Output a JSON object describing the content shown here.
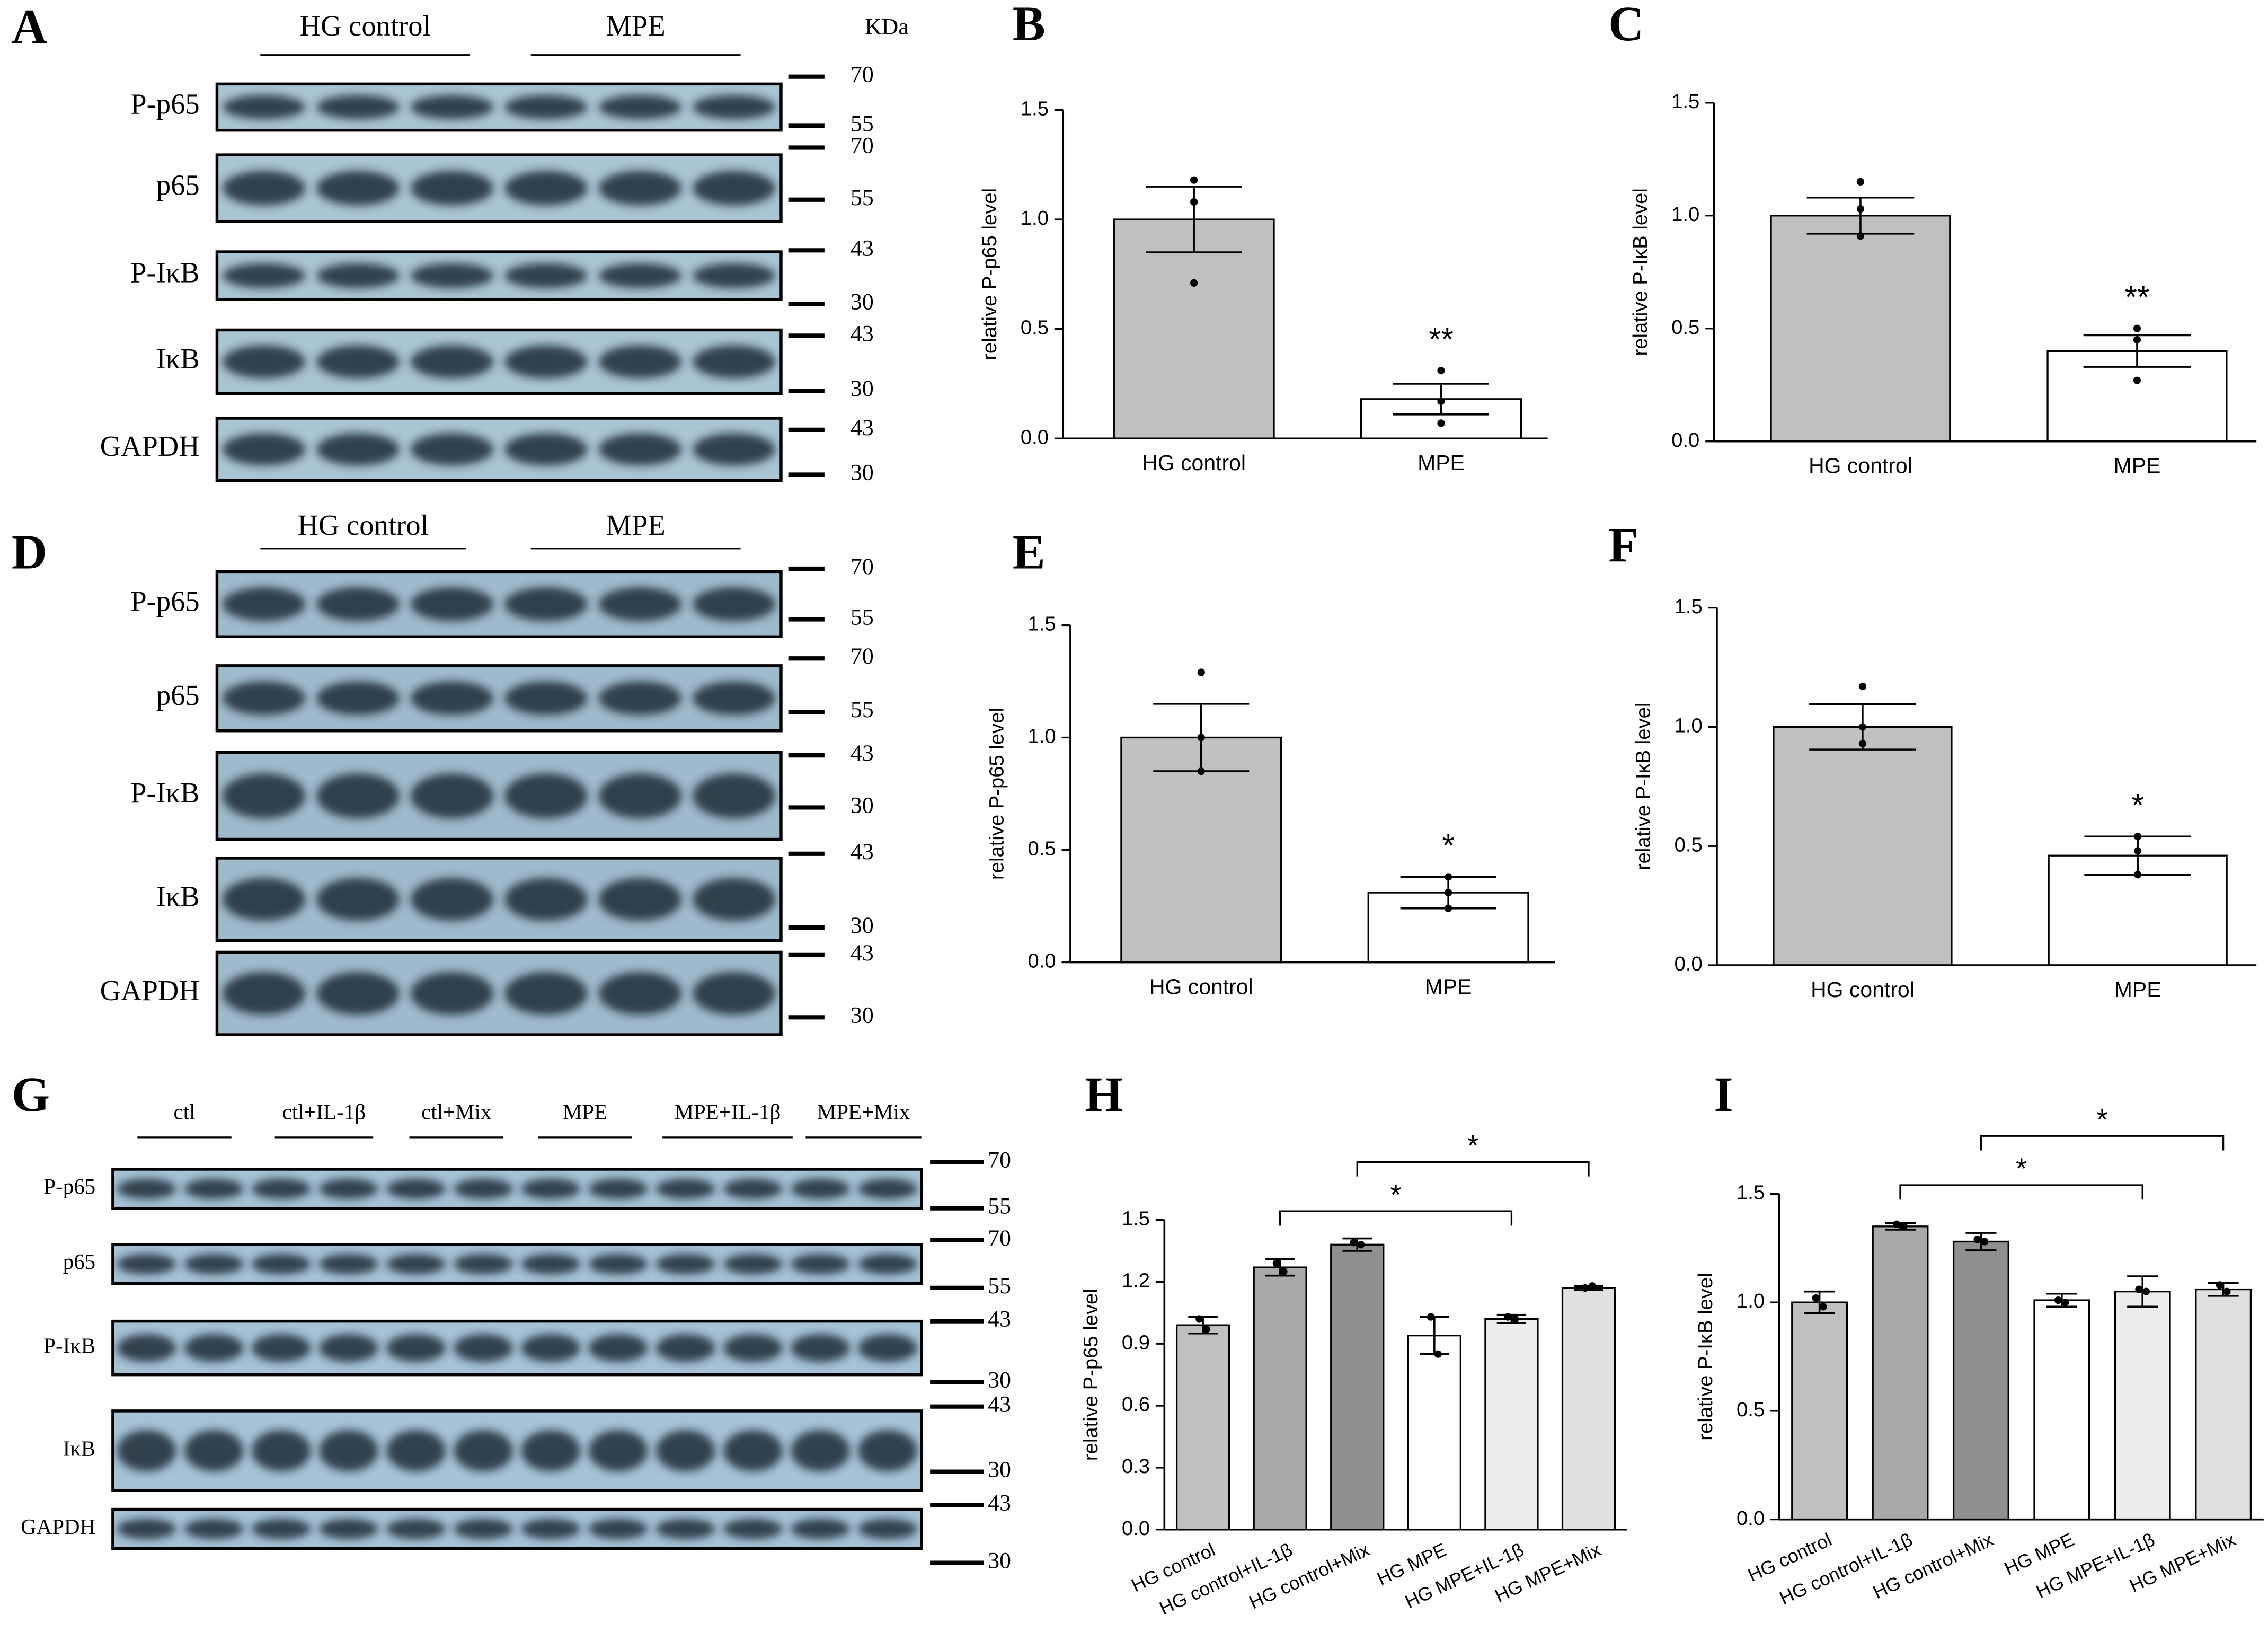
{
  "blots": [
    {
      "panel": "A",
      "groups": [
        "HG control",
        "MPE"
      ],
      "unit": "KDa",
      "rows": [
        {
          "label": "P-p65",
          "markers": [
            "70",
            "55"
          ]
        },
        {
          "label": "p65",
          "markers": [
            "70",
            "55"
          ]
        },
        {
          "label": "P-IκB",
          "markers": [
            "43",
            "30"
          ]
        },
        {
          "label": "IκB",
          "markers": [
            "43",
            "30"
          ]
        },
        {
          "label": "GAPDH",
          "markers": [
            "43",
            "30"
          ]
        }
      ]
    },
    {
      "panel": "D",
      "groups": [
        "HG control",
        "MPE"
      ],
      "rows": [
        {
          "label": "P-p65",
          "markers": [
            "70",
            "55"
          ]
        },
        {
          "label": "p65",
          "markers": [
            "70",
            "55"
          ]
        },
        {
          "label": "P-IκB",
          "markers": [
            "43",
            "30"
          ]
        },
        {
          "label": "IκB",
          "markers": [
            "43",
            "30"
          ]
        },
        {
          "label": "GAPDH",
          "markers": [
            "43",
            "30"
          ]
        }
      ]
    },
    {
      "panel": "G",
      "groups": [
        "ctl",
        "ctl+IL-1β",
        "ctl+Mix",
        "MPE",
        "MPE+IL-1β",
        "MPE+Mix"
      ],
      "rows": [
        {
          "label": "P-p65",
          "markers": [
            "70",
            "55"
          ]
        },
        {
          "label": "p65",
          "markers": [
            "70",
            "55"
          ]
        },
        {
          "label": "P-IκB",
          "markers": [
            "43",
            "30"
          ]
        },
        {
          "label": "IκB",
          "markers": [
            "43",
            "30"
          ]
        },
        {
          "label": "GAPDH",
          "markers": [
            "43",
            "30"
          ]
        }
      ]
    }
  ],
  "chart_data": [
    {
      "type": "bar",
      "panel": "B",
      "ylabel": "relative P-p65 level",
      "categories": [
        "HG control",
        "MPE"
      ],
      "values": [
        1.0,
        0.18
      ],
      "errors": [
        0.15,
        0.07
      ],
      "points": [
        [
          1.18,
          1.08,
          0.71
        ],
        [
          0.31,
          0.17,
          0.07
        ]
      ],
      "colors": [
        "#c0c0c0",
        "#ffffff"
      ],
      "ylim": [
        0,
        1.5
      ],
      "yticks": [
        {
          "value": 0,
          "label": "0.0"
        },
        0.5,
        {
          "value": 1,
          "label": "1.0"
        },
        1.5
      ],
      "annotations": [
        {
          "text": "**",
          "over": "MPE"
        }
      ]
    },
    {
      "type": "bar",
      "panel": "C",
      "ylabel": "relative P-IκB level",
      "categories": [
        "HG control",
        "MPE"
      ],
      "values": [
        1.0,
        0.4
      ],
      "errors": [
        0.08,
        0.07
      ],
      "points": [
        [
          1.15,
          1.03,
          0.91
        ],
        [
          0.5,
          0.45,
          0.27
        ]
      ],
      "colors": [
        "#c0c0c0",
        "#ffffff"
      ],
      "ylim": [
        0,
        1.5
      ],
      "yticks": [
        {
          "value": 0,
          "label": "0.0"
        },
        0.5,
        {
          "value": 1,
          "label": "1.0"
        },
        1.5
      ],
      "annotations": [
        {
          "text": "**",
          "over": "MPE"
        }
      ]
    },
    {
      "type": "bar",
      "panel": "E",
      "ylabel": "relative P-p65 level",
      "categories": [
        "HG control",
        "MPE"
      ],
      "values": [
        1.0,
        0.31
      ],
      "errors": [
        0.15,
        0.07
      ],
      "points": [
        [
          1.29,
          1.0,
          0.85
        ],
        [
          0.38,
          0.31,
          0.24
        ]
      ],
      "colors": [
        "#c0c0c0",
        "#ffffff"
      ],
      "ylim": [
        0,
        1.5
      ],
      "yticks": [
        {
          "value": 0,
          "label": "0.0"
        },
        0.5,
        {
          "value": 1,
          "label": "1.0"
        },
        1.5
      ],
      "annotations": [
        {
          "text": "*",
          "over": "MPE"
        }
      ]
    },
    {
      "type": "bar",
      "panel": "F",
      "ylabel": "relative P-IκB level",
      "categories": [
        "HG control",
        "MPE"
      ],
      "values": [
        1.0,
        0.46
      ],
      "errors": [
        0.095,
        0.08
      ],
      "points": [
        [
          1.17,
          1.0,
          0.93
        ],
        [
          0.54,
          0.48,
          0.38
        ]
      ],
      "colors": [
        "#c0c0c0",
        "#ffffff"
      ],
      "ylim": [
        0,
        1.5
      ],
      "yticks": [
        {
          "value": 0,
          "label": "0.0"
        },
        0.5,
        {
          "value": 1,
          "label": "1.0"
        },
        1.5
      ],
      "annotations": [
        {
          "text": "*",
          "over": "MPE"
        }
      ]
    },
    {
      "type": "bar",
      "panel": "H",
      "ylabel": "relative P-p65 level",
      "categories": [
        "HG control",
        "HG control+IL-1β",
        "HG control+Mix",
        "HG MPE",
        "HG MPE+IL-1β",
        "HG MPE+Mix"
      ],
      "values": [
        0.99,
        1.27,
        1.38,
        0.94,
        1.02,
        1.17
      ],
      "errors": [
        0.04,
        0.04,
        0.03,
        0.09,
        0.02,
        0.01
      ],
      "points": [
        [
          1.02,
          0.97
        ],
        [
          1.29,
          1.25
        ],
        [
          1.39,
          1.38
        ],
        [
          1.03,
          0.85
        ],
        [
          1.03,
          1.02
        ],
        [
          1.17,
          1.18
        ]
      ],
      "colors": [
        "#c0c0c0",
        "#a9a9a9",
        "#8f8f8f",
        "#ffffff",
        "#ececec",
        "#e0e0e0"
      ],
      "ylim": [
        0,
        1.5
      ],
      "yticks": [
        {
          "value": 0,
          "label": "0.0"
        },
        0.3,
        0.6,
        0.9,
        1.2,
        1.5
      ],
      "annotations": [
        {
          "text": "*",
          "from": "HG control+IL-1β",
          "to": "HG MPE+IL-1β"
        },
        {
          "text": "*",
          "from": "HG control+Mix",
          "to": "HG MPE+Mix"
        }
      ]
    },
    {
      "type": "bar",
      "panel": "I",
      "ylabel": "relative P-IκB level",
      "categories": [
        "HG control",
        "HG control+IL-1β",
        "HG control+Mix",
        "HG MPE",
        "HG MPE+IL-1β",
        "HG MPE+Mix"
      ],
      "values": [
        1.0,
        1.35,
        1.28,
        1.01,
        1.05,
        1.06
      ],
      "errors": [
        0.05,
        0.015,
        0.04,
        0.03,
        0.07,
        0.03
      ],
      "points": [
        [
          1.02,
          0.98
        ],
        [
          1.36,
          1.35
        ],
        [
          1.29,
          1.28
        ],
        [
          1.01,
          1.0
        ],
        [
          1.06,
          1.05
        ],
        [
          1.08,
          1.05
        ]
      ],
      "colors": [
        "#c0c0c0",
        "#a9a9a9",
        "#8f8f8f",
        "#ffffff",
        "#ececec",
        "#e0e0e0"
      ],
      "ylim": [
        0,
        1.5
      ],
      "yticks": [
        {
          "value": 0,
          "label": "0.0"
        },
        0.5,
        {
          "value": 1,
          "label": "1.0"
        },
        1.5
      ],
      "annotations": [
        {
          "text": "*",
          "from": "HG control+IL-1β",
          "to": "HG MPE+IL-1β"
        },
        {
          "text": "*",
          "from": "HG control+Mix",
          "to": "HG MPE+Mix"
        }
      ]
    }
  ]
}
